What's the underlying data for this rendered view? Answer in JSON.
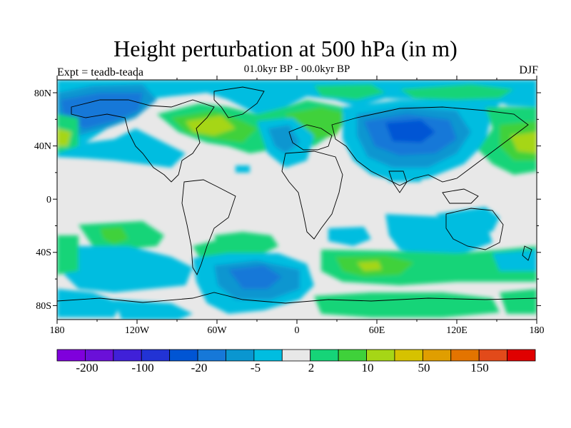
{
  "title": "Height perturbation at 500 hPa (in m)",
  "subtitle": "01.0kyr BP - 00.0kyr BP",
  "experiment": "Expt = teadb-teada",
  "season": "DJF",
  "lat_labels": [
    "80N",
    "40N",
    "0",
    "40S",
    "80S"
  ],
  "lon_labels": [
    "180",
    "120W",
    "60W",
    "0",
    "60E",
    "120E",
    "180"
  ],
  "colorbar": {
    "colors": [
      "#7f00dc",
      "#6a10d8",
      "#4020d8",
      "#2233d4",
      "#0055d4",
      "#1678d8",
      "#0a96d0",
      "#00bde0",
      "#e8e8e8",
      "#16d478",
      "#3fd13a",
      "#a6d616",
      "#d6c200",
      "#e09e00",
      "#e37400",
      "#e24a1a",
      "#e00000"
    ],
    "labels": [
      "-200",
      "-100",
      "-20",
      "-5",
      "2",
      "10",
      "50",
      "150"
    ]
  },
  "map_colors": {
    "background": "#e8e8e8",
    "light_blue": "#00bde0",
    "mid_blue": "#0a96d0",
    "dark_blue": "#1678d8",
    "deep_blue": "#0055d4",
    "green": "#16d478",
    "bright_green": "#3fd13a",
    "yellow_green": "#a6d616",
    "yellow": "#d6c200"
  }
}
